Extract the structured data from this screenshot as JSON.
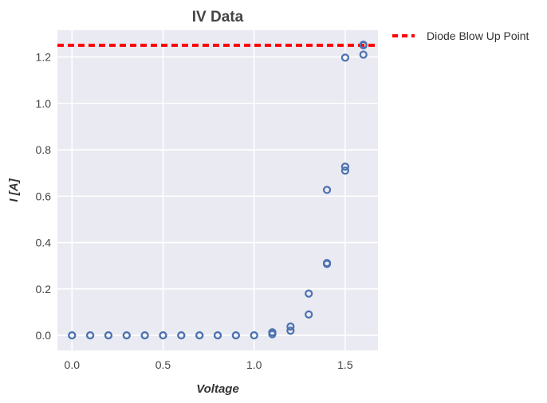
{
  "chart_data": {
    "type": "scatter",
    "title": "IV Data",
    "xlabel": "Voltage",
    "ylabel": "I [A]",
    "xlim": [
      -0.08,
      1.68
    ],
    "ylim": [
      -0.065,
      1.315
    ],
    "xticks": [
      "0.0",
      "0.5",
      "1.0",
      "1.5"
    ],
    "xtick_values": [
      0.0,
      0.5,
      1.0,
      1.5
    ],
    "yticks": [
      "0.0",
      "0.2",
      "0.4",
      "0.6",
      "0.8",
      "1.0",
      "1.2"
    ],
    "ytick_values": [
      0.0,
      0.2,
      0.4,
      0.6,
      0.8,
      1.0,
      1.2
    ],
    "grid": true,
    "series": [
      {
        "type": "scatter",
        "marker": "open-circle",
        "color": "#4c72b0",
        "points": [
          [
            0.0,
            0.0
          ],
          [
            0.0,
            0.0
          ],
          [
            0.1,
            0.0
          ],
          [
            0.1,
            0.0
          ],
          [
            0.2,
            0.0
          ],
          [
            0.2,
            0.0
          ],
          [
            0.3,
            0.0
          ],
          [
            0.3,
            0.0
          ],
          [
            0.4,
            0.0
          ],
          [
            0.4,
            0.0
          ],
          [
            0.5,
            0.0
          ],
          [
            0.5,
            0.0
          ],
          [
            0.6,
            0.0
          ],
          [
            0.6,
            0.0
          ],
          [
            0.7,
            0.0
          ],
          [
            0.7,
            0.0
          ],
          [
            0.8,
            0.0
          ],
          [
            0.8,
            0.0
          ],
          [
            0.9,
            0.0
          ],
          [
            0.9,
            0.0
          ],
          [
            1.0,
            0.0
          ],
          [
            1.0,
            0.0
          ],
          [
            1.1,
            0.005
          ],
          [
            1.1,
            0.013
          ],
          [
            1.2,
            0.02
          ],
          [
            1.2,
            0.038
          ],
          [
            1.3,
            0.09
          ],
          [
            1.3,
            0.18
          ],
          [
            1.4,
            0.308
          ],
          [
            1.4,
            0.312
          ],
          [
            1.4,
            0.627
          ],
          [
            1.5,
            0.71
          ],
          [
            1.5,
            0.727
          ],
          [
            1.5,
            1.197
          ],
          [
            1.6,
            1.21
          ],
          [
            1.6,
            1.25
          ],
          [
            1.6,
            1.253
          ]
        ]
      },
      {
        "type": "hline",
        "name": "Diode Blow Up Point",
        "y": 1.25,
        "color": "#ff0000",
        "style": "dashed"
      }
    ],
    "legend": {
      "placement": "outside-top-right",
      "entries": [
        "Diode Blow Up Point"
      ]
    }
  }
}
